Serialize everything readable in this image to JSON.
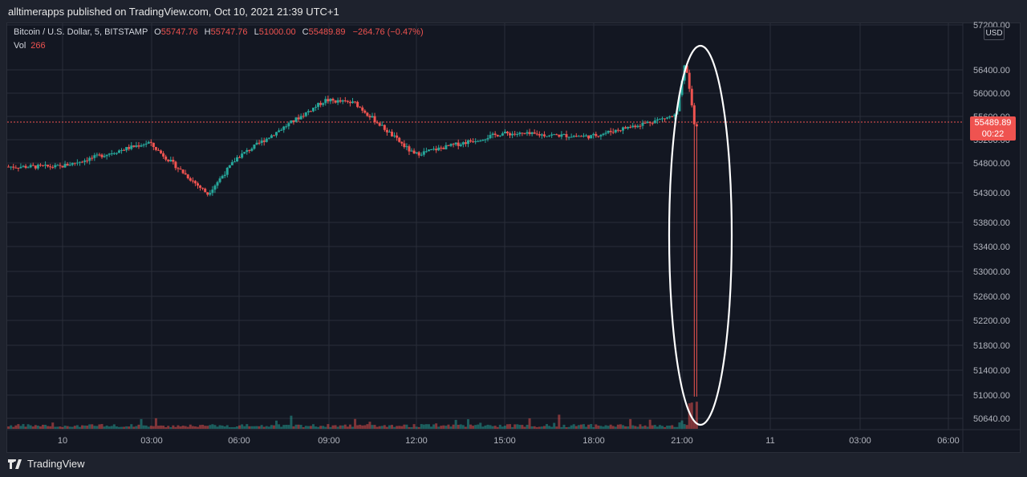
{
  "header": {
    "publisher": "alltimerapps published on TradingView.com, Oct 10, 2021 21:39 UTC+1"
  },
  "legend": {
    "symbol": "Bitcoin / U.S. Dollar, 5, BITSTAMP",
    "o_label": "O",
    "o_value": "55747.76",
    "h_label": "H",
    "h_value": "55747.76",
    "l_label": "L",
    "l_value": "51000.00",
    "c_label": "C",
    "c_value": "55489.89",
    "change": "−264.76 (−0.47%)",
    "vol_label": "Vol",
    "vol_value": "266"
  },
  "currency": "USD",
  "last_price": {
    "price": "55489.89",
    "countdown": "00:22"
  },
  "footer": {
    "brand": "TradingView"
  },
  "colors": {
    "up": "#26a69a",
    "down": "#ef5350",
    "background": "#131722",
    "grid": "#2a2e39"
  },
  "chart_data": {
    "type": "candlestick",
    "y_axis_labels": [
      "57200.00",
      "56400.00",
      "56000.00",
      "55600.00",
      "55200.00",
      "54800.00",
      "54300.00",
      "53800.00",
      "53400.00",
      "53000.00",
      "52600.00",
      "52200.00",
      "51800.00",
      "51400.00",
      "51000.00",
      "50640.00"
    ],
    "x_axis_labels": [
      "10",
      "03:00",
      "06:00",
      "09:00",
      "12:00",
      "15:00",
      "18:00",
      "21:00",
      "11",
      "03:00",
      "06:00"
    ],
    "annotation": "ellipse highlighting the wick down to 51000 at ~21:30",
    "series": [
      {
        "name": "price",
        "x": [
          0,
          3,
          5,
          6,
          9,
          10,
          12,
          15,
          18,
          20.9,
          21.2,
          21.5
        ],
        "y": [
          54800,
          55200,
          54350,
          54950,
          55900,
          55850,
          55000,
          55350,
          55300,
          55650,
          56550,
          55490
        ]
      }
    ],
    "volume": {
      "last_bar": 266
    }
  }
}
